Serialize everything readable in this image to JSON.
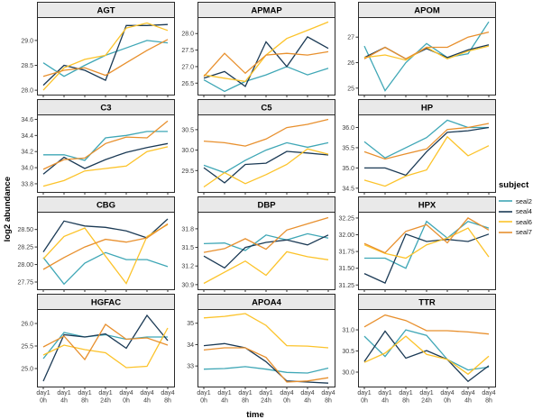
{
  "chart_data": {
    "type": "line",
    "title": "",
    "xlabel": "time",
    "ylabel": "log2 abundance",
    "categories": [
      "day1 0h",
      "day1 4h",
      "day1 8h",
      "day1 24h",
      "day4 0h",
      "day4 4h",
      "day4 8h"
    ],
    "legend": {
      "title": "subject",
      "position": "right",
      "entries": [
        {
          "label": "seal2",
          "color": "#3FA7B6"
        },
        {
          "label": "seal4",
          "color": "#1B3A55"
        },
        {
          "label": "seal6",
          "color": "#FCC32A"
        },
        {
          "label": "seal7",
          "color": "#E8902E"
        }
      ]
    },
    "grid": "off",
    "panel_border": "#2A2A2A",
    "strip_fill": "#E9E9E9",
    "panels": [
      {
        "name": "AGT",
        "ylim": [
          27.93,
          29.45
        ],
        "yticks": [
          "28.0",
          "28.5",
          "29.0"
        ],
        "series": [
          [
            28.55,
            28.28,
            28.5,
            28.7,
            28.85,
            29.0,
            28.95
          ],
          [
            28.1,
            28.5,
            28.4,
            28.2,
            29.3,
            29.3,
            29.32
          ],
          [
            28.0,
            28.45,
            28.62,
            28.7,
            29.25,
            29.35,
            29.2
          ],
          [
            28.28,
            28.4,
            28.45,
            28.3,
            28.55,
            28.8,
            29.02
          ]
        ]
      },
      {
        "name": "APMAP",
        "ylim": [
          26.18,
          28.47
        ],
        "yticks": [
          "26.5",
          "27.0",
          "27.5",
          "28.0"
        ],
        "series": [
          [
            26.6,
            26.25,
            26.55,
            26.75,
            27.0,
            26.75,
            26.95
          ],
          [
            26.65,
            26.85,
            26.4,
            27.75,
            27.0,
            27.9,
            27.55
          ],
          [
            26.75,
            26.65,
            26.55,
            27.35,
            27.85,
            28.1,
            28.35
          ],
          [
            26.7,
            27.4,
            26.8,
            27.35,
            27.4,
            27.35,
            27.45
          ]
        ]
      },
      {
        "name": "APOM",
        "ylim": [
          24.78,
          27.75
        ],
        "yticks": [
          "25",
          "26",
          "27"
        ],
        "series": [
          [
            26.65,
            24.9,
            26.0,
            26.75,
            26.2,
            26.35,
            27.6
          ],
          [
            26.2,
            26.6,
            26.15,
            26.55,
            26.2,
            26.5,
            26.7
          ],
          [
            26.2,
            26.3,
            26.1,
            26.6,
            26.15,
            26.45,
            26.65
          ],
          [
            26.15,
            26.6,
            26.15,
            26.6,
            26.6,
            27.0,
            27.2
          ]
        ]
      },
      {
        "name": "C3",
        "ylim": [
          33.71,
          34.65
        ],
        "yticks": [
          "33.8",
          "34.0",
          "34.2",
          "34.4",
          "34.6"
        ],
        "series": [
          [
            34.16,
            34.16,
            34.09,
            34.37,
            34.4,
            34.45,
            34.45
          ],
          [
            33.92,
            34.13,
            33.99,
            34.1,
            34.19,
            34.25,
            34.3
          ],
          [
            33.77,
            33.84,
            33.96,
            33.99,
            34.02,
            34.2,
            34.26
          ],
          [
            33.98,
            34.1,
            34.12,
            34.3,
            34.38,
            34.37,
            34.58
          ]
        ]
      },
      {
        "name": "C5",
        "ylim": [
          29.0,
          30.85
        ],
        "yticks": [
          "29.5",
          "30.0",
          "30.5"
        ],
        "series": [
          [
            29.63,
            29.45,
            29.75,
            30.0,
            30.18,
            30.07,
            30.18
          ],
          [
            29.57,
            29.2,
            29.65,
            29.68,
            29.97,
            29.93,
            29.88
          ],
          [
            29.1,
            29.45,
            29.18,
            29.4,
            29.65,
            30.03,
            29.9
          ],
          [
            30.22,
            30.18,
            30.1,
            30.27,
            30.55,
            30.63,
            30.75
          ]
        ]
      },
      {
        "name": "HP",
        "ylim": [
          34.43,
          36.3
        ],
        "yticks": [
          "34.5",
          "35.0",
          "35.5",
          "36.0"
        ],
        "series": [
          [
            35.65,
            35.25,
            35.5,
            35.75,
            36.18,
            36.0,
            36.0
          ],
          [
            35.0,
            35.0,
            34.82,
            35.4,
            35.88,
            35.92,
            36.0
          ],
          [
            34.7,
            34.55,
            34.8,
            34.95,
            35.77,
            35.3,
            35.55
          ],
          [
            35.4,
            35.22,
            35.35,
            35.47,
            35.95,
            36.0,
            36.1
          ]
        ]
      },
      {
        "name": "CBG",
        "ylim": [
          27.66,
          28.74
        ],
        "yticks": [
          "27.75",
          "28.00",
          "28.25",
          "28.50"
        ],
        "series": [
          [
            28.1,
            27.72,
            28.02,
            28.17,
            28.07,
            28.07,
            27.97
          ],
          [
            28.18,
            28.62,
            28.55,
            28.53,
            28.48,
            28.38,
            28.65
          ],
          [
            28.08,
            28.4,
            28.52,
            28.12,
            27.73,
            28.4,
            28.57
          ],
          [
            27.93,
            28.1,
            28.25,
            28.36,
            28.32,
            28.38,
            28.58
          ]
        ]
      },
      {
        "name": "DBP",
        "ylim": [
          30.84,
          32.06
        ],
        "yticks": [
          "30.9",
          "31.2",
          "31.5",
          "31.8"
        ],
        "series": [
          [
            31.56,
            31.57,
            31.45,
            31.7,
            31.62,
            31.72,
            31.65
          ],
          [
            31.36,
            31.17,
            31.5,
            31.58,
            31.62,
            31.54,
            31.7
          ],
          [
            30.92,
            31.1,
            31.28,
            31.05,
            31.43,
            31.35,
            31.3
          ],
          [
            31.42,
            31.48,
            31.64,
            31.47,
            31.78,
            31.88,
            31.98
          ]
        ]
      },
      {
        "name": "HPX",
        "ylim": [
          31.2,
          32.33
        ],
        "yticks": [
          "31.25",
          "31.50",
          "31.75",
          "32.00",
          "32.25"
        ],
        "series": [
          [
            31.65,
            31.65,
            31.5,
            32.2,
            31.95,
            32.2,
            32.1
          ],
          [
            31.42,
            31.28,
            32.01,
            31.9,
            31.93,
            31.9,
            32.01
          ],
          [
            31.85,
            31.72,
            31.65,
            31.85,
            31.95,
            32.1,
            31.67
          ],
          [
            31.87,
            31.73,
            32.05,
            32.15,
            31.88,
            32.25,
            32.07
          ]
        ]
      },
      {
        "name": "HGFAC",
        "ylim": [
          24.62,
          26.3
        ],
        "yticks": [
          "25.0",
          "25.5",
          "26.0"
        ],
        "series": [
          [
            25.22,
            25.8,
            25.7,
            25.75,
            25.65,
            25.7,
            25.7
          ],
          [
            24.72,
            25.75,
            25.7,
            25.77,
            25.45,
            26.18,
            25.62
          ],
          [
            25.3,
            25.52,
            25.42,
            25.35,
            25.02,
            25.05,
            25.9
          ],
          [
            25.48,
            25.72,
            25.2,
            25.98,
            25.65,
            25.68,
            25.52
          ]
        ]
      },
      {
        "name": "APOA4",
        "ylim": [
          32.08,
          35.62
        ],
        "yticks": [
          "33",
          "34",
          "35"
        ],
        "series": [
          [
            32.85,
            32.88,
            32.97,
            32.85,
            32.7,
            32.67,
            32.9
          ],
          [
            33.95,
            34.05,
            33.85,
            33.2,
            32.3,
            32.25,
            32.2
          ],
          [
            35.25,
            35.32,
            35.45,
            34.9,
            33.95,
            33.93,
            33.85
          ],
          [
            33.75,
            33.85,
            33.85,
            33.4,
            32.25,
            32.3,
            32.45
          ]
        ]
      },
      {
        "name": "TTR",
        "ylim": [
          29.68,
          31.47
        ],
        "yticks": [
          "30.0",
          "30.5",
          "31.0"
        ],
        "series": [
          [
            30.85,
            30.37,
            31.0,
            30.87,
            30.3,
            30.05,
            30.12
          ],
          [
            30.25,
            30.97,
            30.33,
            30.51,
            30.3,
            29.78,
            30.15
          ],
          [
            30.23,
            30.45,
            30.85,
            30.42,
            30.3,
            29.95,
            30.38
          ],
          [
            31.07,
            31.35,
            31.22,
            30.98,
            30.98,
            30.95,
            30.9
          ]
        ]
      }
    ]
  }
}
